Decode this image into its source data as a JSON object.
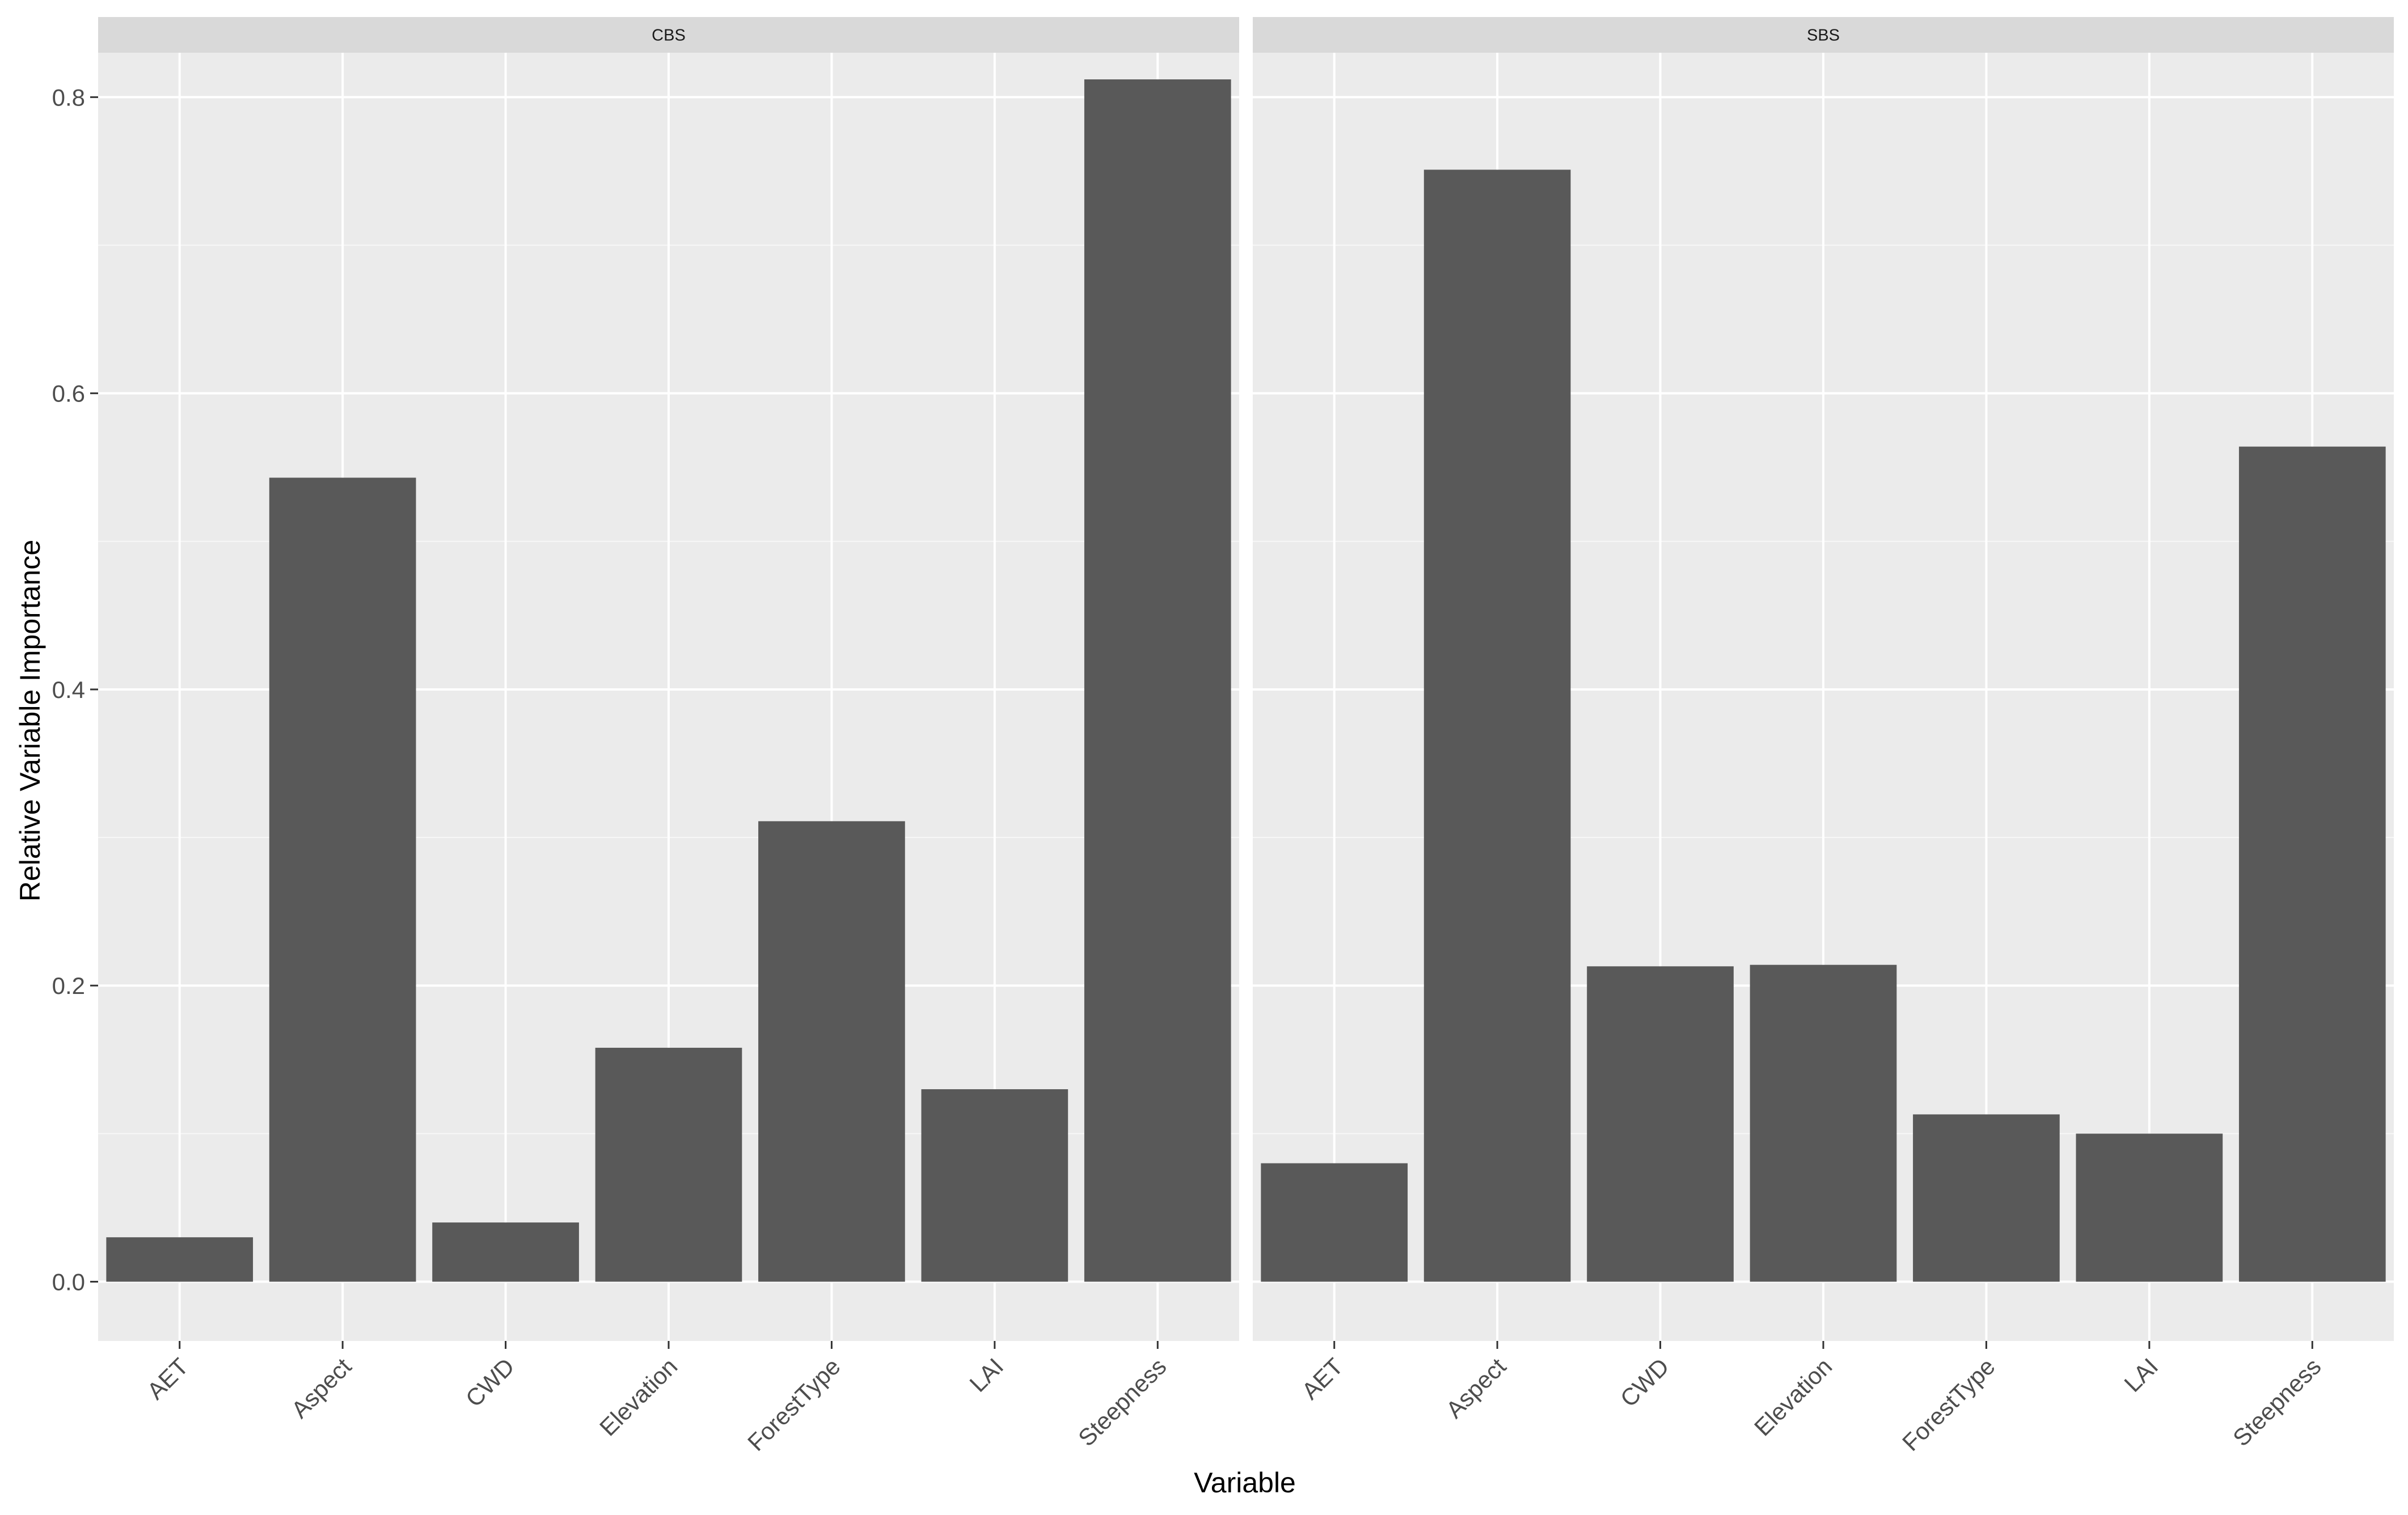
{
  "chart_data": {
    "type": "bar",
    "xlabel": "Variable",
    "ylabel": "Relative Variable Importance",
    "ylim": [
      -0.04,
      0.83
    ],
    "yticks": [
      0.0,
      0.2,
      0.4,
      0.6,
      0.8
    ],
    "ytick_labels": [
      "0.0",
      "0.2",
      "0.4",
      "0.6",
      "0.8"
    ],
    "grid": true,
    "bar_color": "#595959",
    "panel_background": "#ebebeb",
    "strip_background": "#d9d9d9",
    "categories": [
      "AET",
      "Aspect",
      "CWD",
      "Elevation",
      "ForestType",
      "LAI",
      "Steepness"
    ],
    "facets": [
      {
        "name": "CBS",
        "values": [
          0.03,
          0.543,
          0.04,
          0.158,
          0.311,
          0.13,
          0.812
        ]
      },
      {
        "name": "SBS",
        "values": [
          0.08,
          0.751,
          0.213,
          0.214,
          0.113,
          0.1,
          0.564
        ]
      }
    ]
  }
}
